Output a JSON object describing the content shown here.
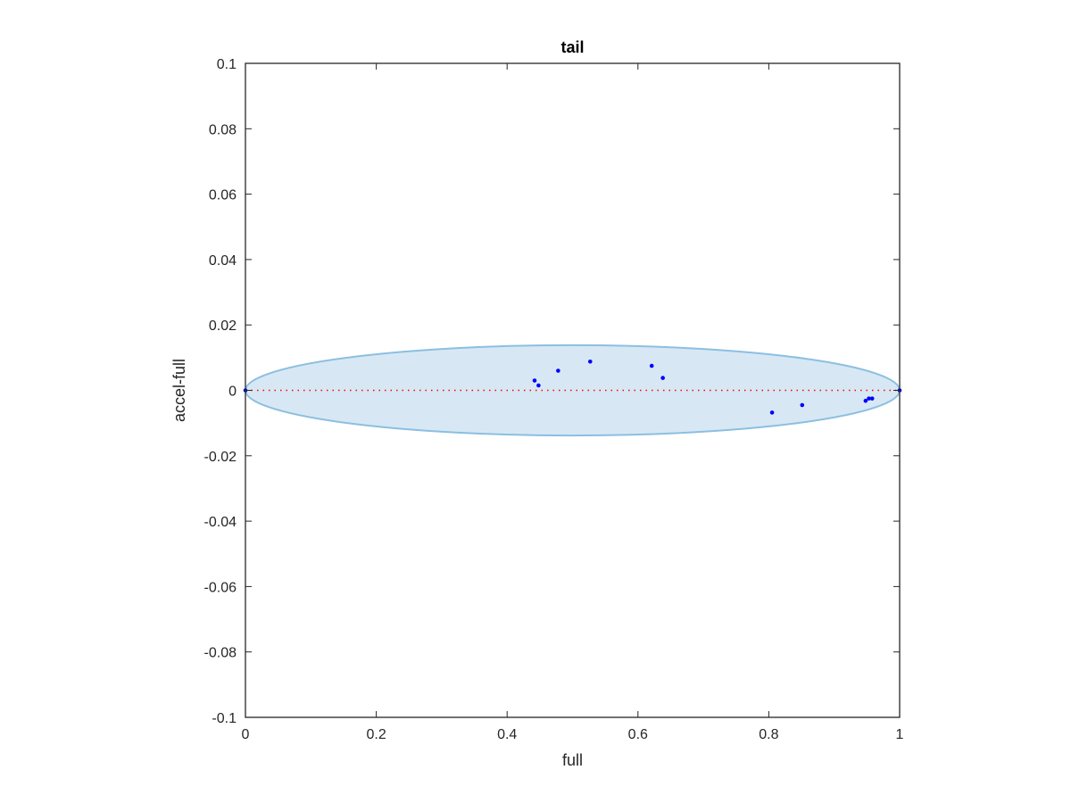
{
  "chart_data": {
    "type": "scatter",
    "title": "tail",
    "xlabel": "full",
    "ylabel": "accel-full",
    "xlim": [
      0,
      1
    ],
    "ylim": [
      -0.1,
      0.1
    ],
    "grid": false,
    "x_ticks": [
      0,
      0.2,
      0.4,
      0.6,
      0.8,
      1
    ],
    "x_tick_labels": [
      "0",
      "0.2",
      "0.4",
      "0.6",
      "0.8",
      "1"
    ],
    "y_ticks": [
      0.1,
      0.08,
      0.06,
      0.04,
      0.02,
      0,
      -0.02,
      -0.04,
      -0.06,
      -0.08,
      -0.1
    ],
    "y_tick_labels": [
      "0.1",
      "0.08",
      "0.06",
      "0.04",
      "0.02",
      "0",
      "-0.02",
      "-0.04",
      "-0.06",
      "-0.08",
      "-0.1"
    ],
    "points": {
      "x": [
        0,
        0.442,
        0.448,
        0.478,
        0.527,
        0.621,
        0.638,
        0.805,
        0.851,
        0.948,
        0.953,
        0.958,
        1
      ],
      "y": [
        0,
        0.003,
        0.0015,
        0.006,
        0.0088,
        0.0075,
        0.0038,
        -0.0068,
        -0.0045,
        -0.0032,
        -0.0025,
        -0.0025,
        0
      ],
      "color": "#0000ff"
    },
    "ellipse": {
      "center": [
        0.5,
        0
      ],
      "semi_axis_x": 0.5,
      "semi_axis_y": 0.0138,
      "fill": "#d7e8f4",
      "stroke": "#8cbfe0"
    },
    "reference_line": {
      "y": 0,
      "x_range": [
        0,
        1
      ],
      "style": "dotted",
      "color": "#ff0000"
    }
  }
}
